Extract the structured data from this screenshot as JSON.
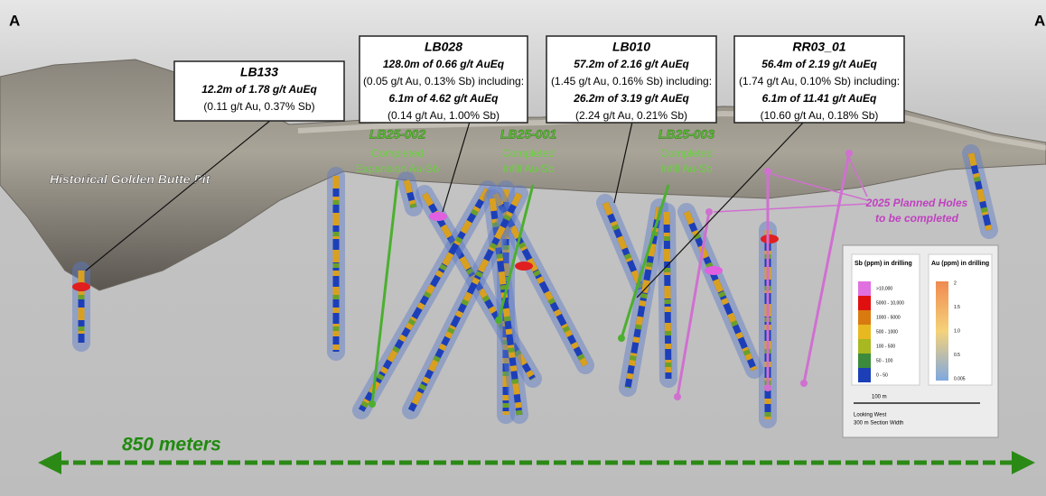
{
  "section": {
    "start_label": "A",
    "end_label": "A"
  },
  "pit_label": "Historical Golden Butte Pit",
  "callouts": [
    {
      "hole": "LB133",
      "lines": [
        "12.2m of 1.78 g/t AuEq",
        "(0.11 g/t Au, 0.37% Sb)"
      ]
    },
    {
      "hole": "LB028",
      "lines": [
        "128.0m of 0.66 g/t AuEq",
        "(0.05 g/t Au, 0.13% Sb) including:",
        "6.1m of 4.62 g/t AuEq",
        "(0.14 g/t Au, 1.00% Sb)"
      ]
    },
    {
      "hole": "LB010",
      "lines": [
        "57.2m of 2.16 g/t AuEq",
        "(1.45 g/t Au, 0.16% Sb) including:",
        "26.2m of 3.19 g/t AuEq",
        "(2.24 g/t Au, 0.21% Sb)"
      ]
    },
    {
      "hole": "RR03_01",
      "lines": [
        "56.4m of 2.19 g/t AuEq",
        "(1.74 g/t Au, 0.10% Sb) including:",
        "6.1m of 11.41 g/t AuEq",
        "(10.60 g/t Au, 0.18% Sb)"
      ]
    }
  ],
  "hole_labels": [
    {
      "hole": "LB25-002",
      "status": "Completed",
      "purpose": "Expansion Au-Sb"
    },
    {
      "hole": "LB25-001",
      "status": "Completed",
      "purpose": "Infill Au-Sb"
    },
    {
      "hole": "LB25-003",
      "status": "Completed",
      "purpose": "Infill Au-Sb"
    }
  ],
  "planned_note": [
    "2025 Planned Holes",
    "to be completed"
  ],
  "legend": {
    "sb_title": "Sb (ppm) in drilling",
    "sb_classes": [
      ">10,000",
      "5000 - 10,000",
      "1000 - 5000",
      "500 - 1000",
      "100 - 500",
      "50 - 100",
      "0 - 50"
    ],
    "au_title": "Au (ppm) in drilling",
    "au_ticks": [
      "2",
      "1.5",
      "1.0",
      "0.5",
      "0.005"
    ],
    "scale_label": "100 m",
    "view": "Looking West",
    "section_width": "300 m Section Width"
  },
  "scale_bar": "850 meters"
}
